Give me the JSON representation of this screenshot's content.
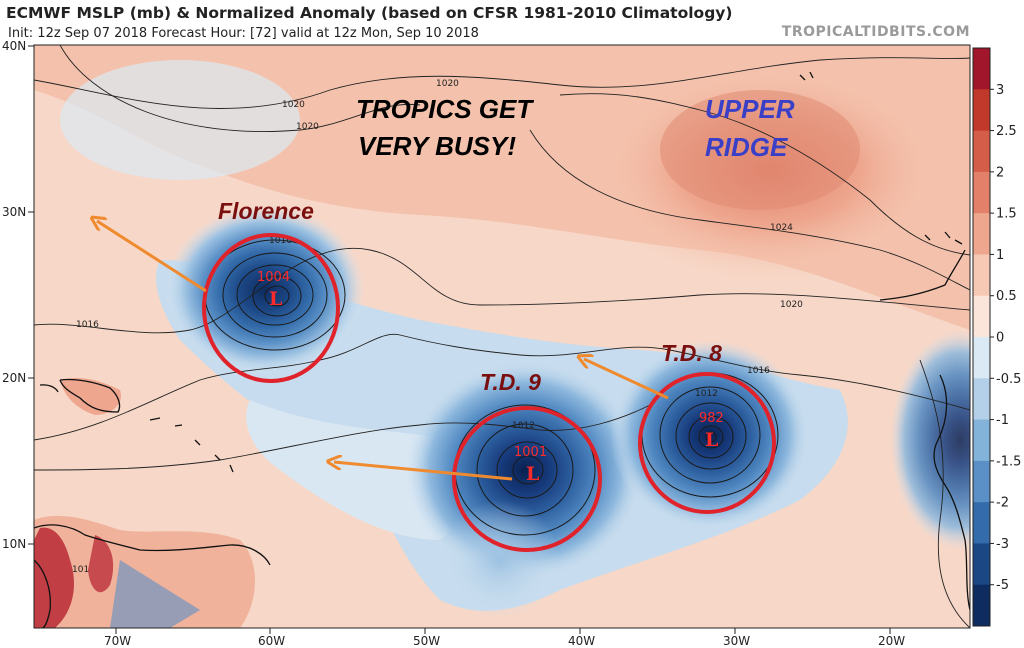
{
  "header": {
    "title": "ECMWF MSLP (mb) & Normalized Anomaly (based on CFSR 1981-2010 Climatology)",
    "subtitle": "Init: 12z Sep 07 2018   Forecast Hour: [72]   valid at 12z Mon, Sep 10 2018",
    "brand": "TROPICALTIDBITS.COM"
  },
  "axes": {
    "lat_labels": [
      "40N",
      "30N",
      "20N",
      "10N"
    ],
    "lon_labels": [
      "70W",
      "60W",
      "50W",
      "40W",
      "30W",
      "20W"
    ]
  },
  "colorbar": {
    "labels": [
      "3",
      "2.5",
      "2",
      "1.5",
      "1",
      "0.5",
      "0",
      "-0.5",
      "-1",
      "-1.5",
      "-2",
      "-3",
      "-5"
    ],
    "colors": [
      "#a1162a",
      "#c0392b",
      "#d45d4a",
      "#e2806a",
      "#eea68e",
      "#f6c9b5",
      "#fbe5da",
      "#dbe9f4",
      "#b4d0e8",
      "#84b3da",
      "#5a90c6",
      "#346cab",
      "#1c4785",
      "#0e2c60"
    ]
  },
  "annotations": {
    "headline_line1": "TROPICS GET",
    "headline_line2": "VERY BUSY!",
    "ridge_line1": "UPPER",
    "ridge_line2": "RIDGE",
    "florence": "Florence",
    "td9": "T.D. 9",
    "td8": "T.D. 8"
  },
  "storms": {
    "florence": {
      "pressure": "1004",
      "symbol": "L"
    },
    "td9": {
      "pressure": "1001",
      "symbol": "L"
    },
    "td8": {
      "pressure": "982",
      "symbol": "L"
    }
  },
  "contour_labels": [
    "1020",
    "1020",
    "1020",
    "1016",
    "1016",
    "1016",
    "1012",
    "1012",
    "1024",
    "1020",
    "1016",
    "101"
  ],
  "colors": {
    "annotation_red": "#7a0f0f",
    "annotation_blue": "#3a3fc8",
    "circle_red": "#e0222b",
    "arrow_orange": "#f08a2e",
    "pressure_red": "#ff2a2a"
  }
}
